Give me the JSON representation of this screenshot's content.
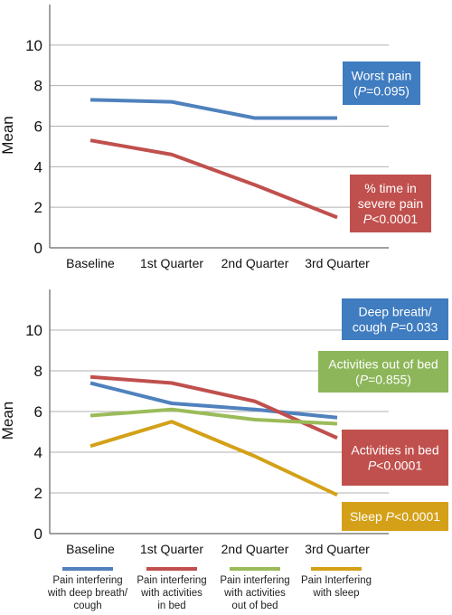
{
  "chart_data": [
    {
      "type": "line",
      "ylabel": "Mean",
      "ylim": [
        0,
        12
      ],
      "yticks": [
        0,
        2,
        4,
        6,
        8,
        10
      ],
      "grid": true,
      "categories": [
        "Baseline",
        "1st Quarter",
        "2nd Quarter",
        "3rd Quarter"
      ],
      "series": [
        {
          "key": "worst",
          "color": "#4f81bd",
          "values": [
            7.3,
            7.2,
            6.4,
            6.4
          ],
          "annotation": {
            "lines": [
              "Worst pain",
              "(P=0.095)"
            ],
            "fill": "#3f7cc0"
          }
        },
        {
          "key": "severe",
          "color": "#c0504d",
          "values": [
            5.3,
            4.6,
            3.1,
            1.5
          ],
          "annotation": {
            "lines": [
              "% time in",
              "severe pain",
              "P<0.0001"
            ],
            "fill": "#c0504d"
          }
        }
      ]
    },
    {
      "type": "line",
      "ylabel": "Mean",
      "ylim": [
        0,
        12
      ],
      "yticks": [
        0,
        2,
        4,
        6,
        8,
        10
      ],
      "grid": true,
      "categories": [
        "Baseline",
        "1st Quarter",
        "2nd Quarter",
        "3rd Quarter"
      ],
      "series": [
        {
          "key": "breath",
          "color": "#4f81bd",
          "values": [
            7.4,
            6.4,
            6.1,
            5.7
          ],
          "annotation": {
            "lines": [
              "Deep breath/",
              "cough P=0.033"
            ],
            "fill": "#3f7cc0"
          }
        },
        {
          "key": "activities-in-bed",
          "color": "#c0504d",
          "values": [
            7.7,
            7.4,
            6.5,
            4.7
          ],
          "annotation": {
            "lines": [
              "Activities in bed",
              "P<0.0001"
            ],
            "fill": "#c0504d"
          }
        },
        {
          "key": "activities-out-of-bed",
          "color": "#9bbb59",
          "values": [
            5.8,
            6.1,
            5.6,
            5.4
          ],
          "annotation": {
            "lines": [
              "Activities out of bed",
              "(P=0.855)"
            ],
            "fill": "#8db65a"
          }
        },
        {
          "key": "sleep",
          "color": "#d4a017",
          "values": [
            4.3,
            5.5,
            3.8,
            1.9
          ],
          "annotation": {
            "lines": [
              "Sleep P<0.0001"
            ],
            "fill": "#d4a017"
          }
        }
      ],
      "legend": [
        {
          "color": "#4f81bd",
          "lines": [
            "Pain interfering",
            "with deep breath/",
            "cough"
          ]
        },
        {
          "color": "#c0504d",
          "lines": [
            "Pain interfering",
            "with activities",
            "in bed"
          ]
        },
        {
          "color": "#9bbb59",
          "lines": [
            "Pain interfering",
            "with activities",
            "out of bed"
          ]
        },
        {
          "color": "#d4a017",
          "lines": [
            "Pain Interfering",
            "with sleep"
          ]
        }
      ]
    }
  ]
}
